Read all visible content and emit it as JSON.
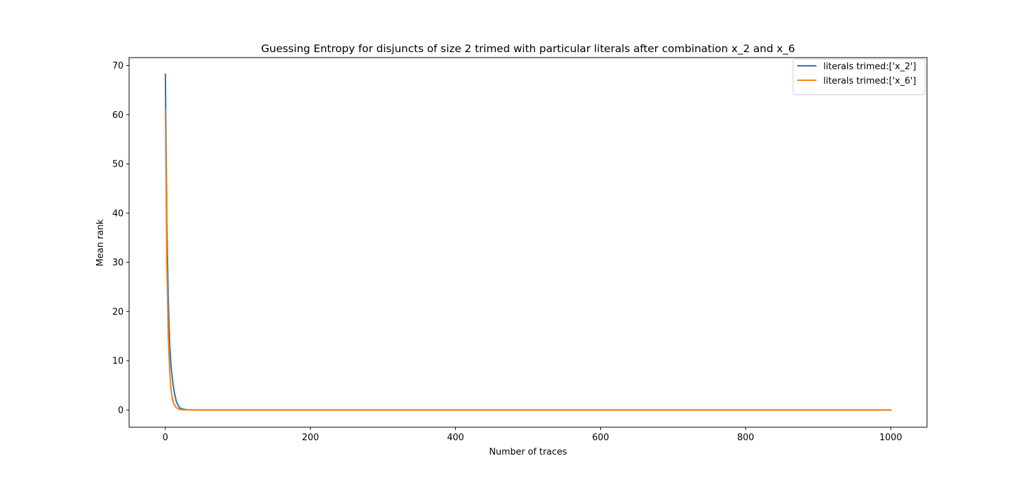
{
  "chart_data": {
    "type": "line",
    "title": "Guessing Entropy for disjuncts of size 2 trimed with particular literals after combination x_2 and x_6",
    "xlabel": "Number of traces",
    "ylabel": "Mean rank",
    "xlim": [
      -50,
      1050
    ],
    "ylim": [
      -3.5,
      71.6
    ],
    "x_ticks": [
      0,
      200,
      400,
      600,
      800,
      1000
    ],
    "y_ticks": [
      0,
      10,
      20,
      30,
      40,
      50,
      60,
      70
    ],
    "grid": false,
    "legend_position": "top-right",
    "series": [
      {
        "name": "literals trimed:['x_2']",
        "color": "#1f77b4",
        "x": [
          0,
          2,
          4,
          6,
          8,
          10,
          12,
          15,
          18,
          20,
          25,
          30,
          40,
          60,
          100,
          200,
          400,
          600,
          800,
          1000
        ],
        "values": [
          68.2,
          38.0,
          22.5,
          13.0,
          8.5,
          6.0,
          3.8,
          1.8,
          0.8,
          0.4,
          0.15,
          0.05,
          0.01,
          0.0,
          0.0,
          0.0,
          0.0,
          0.0,
          0.0,
          0.0
        ]
      },
      {
        "name": "literals trimed:['x_6']",
        "color": "#ff7f0e",
        "x": [
          0,
          2,
          4,
          6,
          8,
          10,
          12,
          15,
          18,
          20,
          25,
          30,
          40,
          60,
          100,
          200,
          400,
          600,
          800,
          1000
        ],
        "values": [
          61.0,
          30.0,
          15.0,
          7.5,
          3.8,
          2.0,
          1.1,
          0.5,
          0.2,
          0.1,
          0.03,
          0.01,
          0.0,
          0.0,
          0.0,
          0.0,
          0.0,
          0.0,
          0.0,
          0.0
        ]
      }
    ]
  }
}
